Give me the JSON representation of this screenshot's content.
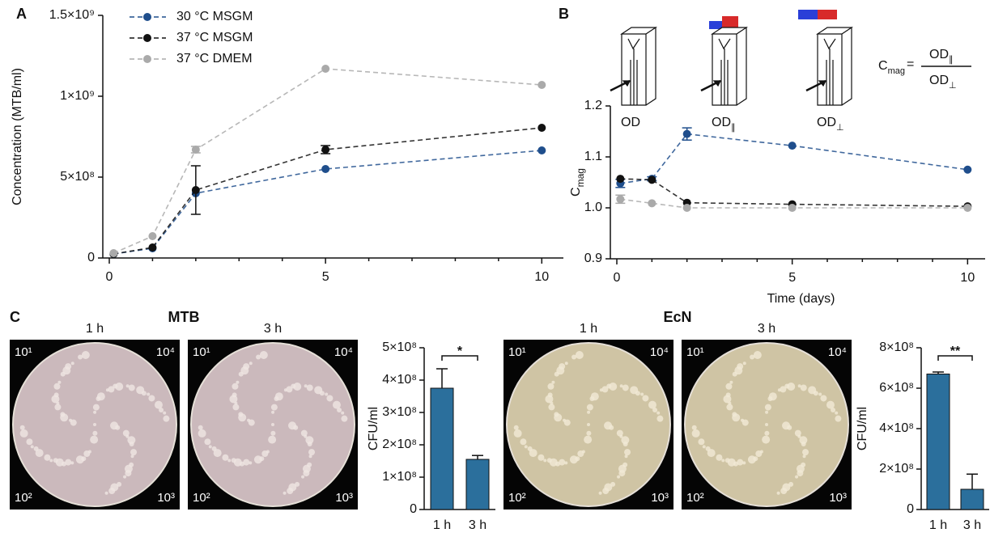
{
  "panel_labels": [
    "A",
    "B",
    "C"
  ],
  "chart_data": [
    {
      "type": "line",
      "ylabel": "Concentration (MTB/ml)",
      "legend": "top-left",
      "x": [
        0.1,
        1,
        2,
        5,
        10
      ],
      "xlim": [
        0,
        10.5
      ],
      "xticks": [
        0,
        5,
        10
      ],
      "xminor_ticks": [
        1,
        2,
        3,
        4,
        6,
        7,
        8,
        9
      ],
      "ylim": [
        0,
        1500000000
      ],
      "yticks": [
        0,
        {
          "value": 500000000,
          "label": "5×10⁸"
        },
        {
          "value": 1000000000,
          "label": "1×10⁹"
        },
        {
          "value": 1500000000,
          "label": "1.5×10⁹"
        }
      ],
      "series": [
        {
          "name": "30 °C MSGM",
          "color": "#1f4e8c",
          "values": [
            25000000,
            60000000,
            400000000,
            550000000,
            665000000
          ],
          "errors": [
            null,
            null,
            null,
            null,
            null
          ]
        },
        {
          "name": "37 °C MSGM",
          "color": "#111111",
          "values": [
            25000000,
            65000000,
            420000000,
            670000000,
            805000000
          ],
          "errors": [
            null,
            null,
            150000000,
            25000000,
            null
          ]
        },
        {
          "name": "37 °C DMEM",
          "color": "#aaaaaa",
          "values": [
            30000000,
            135000000,
            670000000,
            1170000000,
            1070000000
          ],
          "errors": [
            null,
            null,
            20000000,
            null,
            null
          ]
        }
      ]
    },
    {
      "type": "line",
      "ylabel": "C",
      "ylabel_sub": "mag",
      "xlabel": "Time (days)",
      "x": [
        0.1,
        1,
        2,
        5,
        10
      ],
      "xlim": [
        0,
        10.5
      ],
      "xticks": [
        0,
        5,
        10
      ],
      "xminor_ticks": [
        1,
        2,
        3,
        4,
        6,
        7,
        8,
        9
      ],
      "ylim": [
        0.9,
        1.2
      ],
      "yticks": [
        0.9,
        {
          "value": 1,
          "label": "1.0"
        },
        1.1,
        1.2
      ],
      "series": [
        {
          "color": "#1f4e8c",
          "values": [
            1.048,
            1.057,
            1.145,
            1.122,
            1.075
          ],
          "errors": [
            0.008,
            0.004,
            0.012,
            null,
            null
          ]
        },
        {
          "color": "#111111",
          "values": [
            1.057,
            1.055,
            1.01,
            1.007,
            1.003
          ],
          "errors": [
            null,
            null,
            null,
            null,
            null
          ]
        },
        {
          "color": "#aaaaaa",
          "values": [
            1.017,
            1.009,
            1.0,
            1.0,
            1.0
          ],
          "errors": [
            0.008,
            null,
            null,
            null,
            null
          ]
        }
      ]
    },
    {
      "type": "bar",
      "ylabel": "CFU/ml",
      "categories": [
        "1 h",
        "3 h"
      ],
      "color": "#2b6f9c",
      "values": [
        375000000,
        155000000
      ],
      "errors": [
        60000000,
        12000000
      ],
      "significance": "*",
      "ylim": [
        0,
        500000000
      ],
      "yticks": [
        0,
        {
          "value": 100000000,
          "label": "1×10⁸"
        },
        {
          "value": 200000000,
          "label": "2×10⁸"
        },
        {
          "value": 300000000,
          "label": "3×10⁸"
        },
        {
          "value": 400000000,
          "label": "4×10⁸"
        },
        {
          "value": 500000000,
          "label": "5×10⁸"
        }
      ]
    },
    {
      "type": "bar",
      "ylabel": "CFU/ml",
      "categories": [
        "1 h",
        "3 h"
      ],
      "color": "#2b6f9c",
      "values": [
        670000000,
        100000000
      ],
      "errors": [
        10000000,
        75000000
      ],
      "significance": "**",
      "ylim": [
        0,
        800000000
      ],
      "yticks": [
        0,
        {
          "value": 200000000,
          "label": "2×10⁸"
        },
        {
          "value": 400000000,
          "label": "4×10⁸"
        },
        {
          "value": 600000000,
          "label": "6×10⁸"
        },
        {
          "value": 800000000,
          "label": "8×10⁸"
        }
      ]
    }
  ],
  "photo_groups": [
    {
      "title": "MTB",
      "plates": [
        {
          "time": "1 h",
          "corners": [
            "10¹",
            "10⁴",
            "10²",
            "10³"
          ]
        },
        {
          "time": "3 h",
          "corners": [
            "10¹",
            "10⁴",
            "10²",
            "10³"
          ]
        }
      ]
    },
    {
      "title": "EcN",
      "plates": [
        {
          "time": "1 h",
          "corners": [
            "10¹",
            "10⁴",
            "10²",
            "10³"
          ]
        },
        {
          "time": "3 h",
          "corners": [
            "10¹",
            "10⁴",
            "10²",
            "10³"
          ]
        }
      ]
    }
  ],
  "schematic": {
    "cuvettes": [
      {
        "label": "OD"
      },
      {
        "label": "OD",
        "sub": "∥"
      },
      {
        "label": "OD",
        "sub": "⊥"
      }
    ],
    "formula": {
      "lhs": "C",
      "lhs_sub": "mag",
      "eq": "=",
      "num": "OD",
      "num_sub": "∥",
      "den": "OD",
      "den_sub": "⊥"
    }
  }
}
